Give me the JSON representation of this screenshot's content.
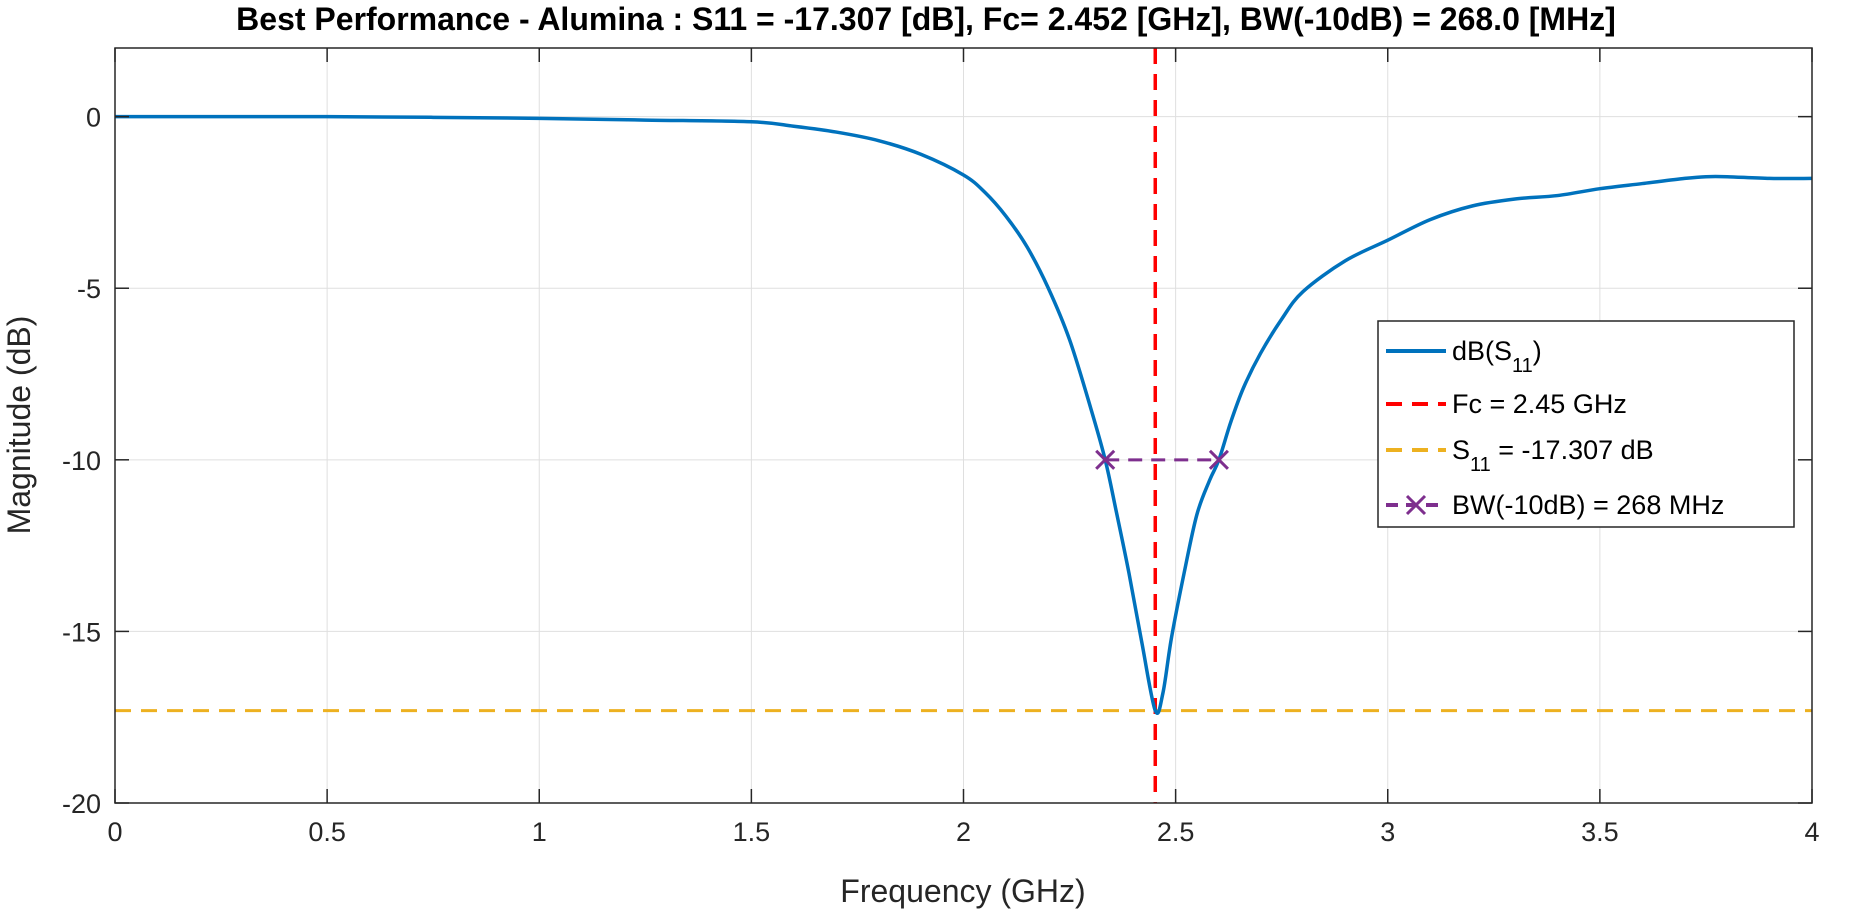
{
  "chart_data": {
    "type": "line",
    "title": "Best Performance - Alumina : S11 = -17.307 [dB], Fc= 2.452 [GHz], BW(-10dB) = 268.0 [MHz]",
    "xlabel": "Frequency (GHz)",
    "ylabel": "Magnitude (dB)",
    "xlim": [
      0,
      4
    ],
    "ylim": [
      -20,
      2
    ],
    "xticks": [
      0,
      0.5,
      1,
      1.5,
      2,
      2.5,
      3,
      3.5,
      4
    ],
    "xtick_labels": [
      "0",
      "0.5",
      "1",
      "1.5",
      "2",
      "2.5",
      "3",
      "3.5",
      "4"
    ],
    "yticks": [
      -20,
      -15,
      -10,
      -5,
      0
    ],
    "ytick_labels": [
      "-20",
      "-15",
      "-10",
      "-5",
      "0"
    ],
    "grid": true,
    "legend_position": "right",
    "series": [
      {
        "name": "dB(S11)",
        "legend_main": "dB(S",
        "legend_sub": "11",
        "legend_tail": ")",
        "color": "#0072BD",
        "style": "solid",
        "x": [
          0,
          0.25,
          0.5,
          0.75,
          1.0,
          1.25,
          1.5,
          1.6,
          1.7,
          1.8,
          1.9,
          2.0,
          2.05,
          2.1,
          2.15,
          2.2,
          2.25,
          2.3,
          2.334,
          2.36,
          2.39,
          2.42,
          2.452,
          2.47,
          2.49,
          2.52,
          2.55,
          2.58,
          2.602,
          2.63,
          2.66,
          2.7,
          2.75,
          2.8,
          2.9,
          3.0,
          3.1,
          3.2,
          3.3,
          3.4,
          3.5,
          3.6,
          3.7,
          3.75,
          3.8,
          3.9,
          4.0
        ],
        "y": [
          0,
          0,
          0,
          -0.02,
          -0.05,
          -0.1,
          -0.15,
          -0.28,
          -0.45,
          -0.7,
          -1.1,
          -1.7,
          -2.2,
          -2.9,
          -3.8,
          -5.0,
          -6.5,
          -8.5,
          -10.0,
          -11.5,
          -13.3,
          -15.3,
          -17.307,
          -16.8,
          -15.2,
          -13.3,
          -11.6,
          -10.6,
          -10.0,
          -8.9,
          -7.9,
          -6.9,
          -5.9,
          -5.1,
          -4.2,
          -3.6,
          -3.0,
          -2.6,
          -2.4,
          -2.3,
          -2.1,
          -1.95,
          -1.8,
          -1.75,
          -1.75,
          -1.8,
          -1.8
        ]
      },
      {
        "name": "Fc = 2.45 GHz",
        "color": "#FF0000",
        "style": "dashed-vertical",
        "x_value": 2.452
      },
      {
        "name": "S11 = -17.307 dB",
        "legend_main": "S",
        "legend_sub": "11",
        "legend_tail": " = -17.307 dB",
        "color": "#EDB120",
        "style": "dashed-horizontal",
        "y_value": -17.307
      },
      {
        "name": "BW(-10dB) = 268 MHz",
        "color": "#7E2F8E",
        "style": "dashed-markers",
        "x": [
          2.334,
          2.602
        ],
        "y": [
          -10,
          -10
        ]
      }
    ]
  }
}
